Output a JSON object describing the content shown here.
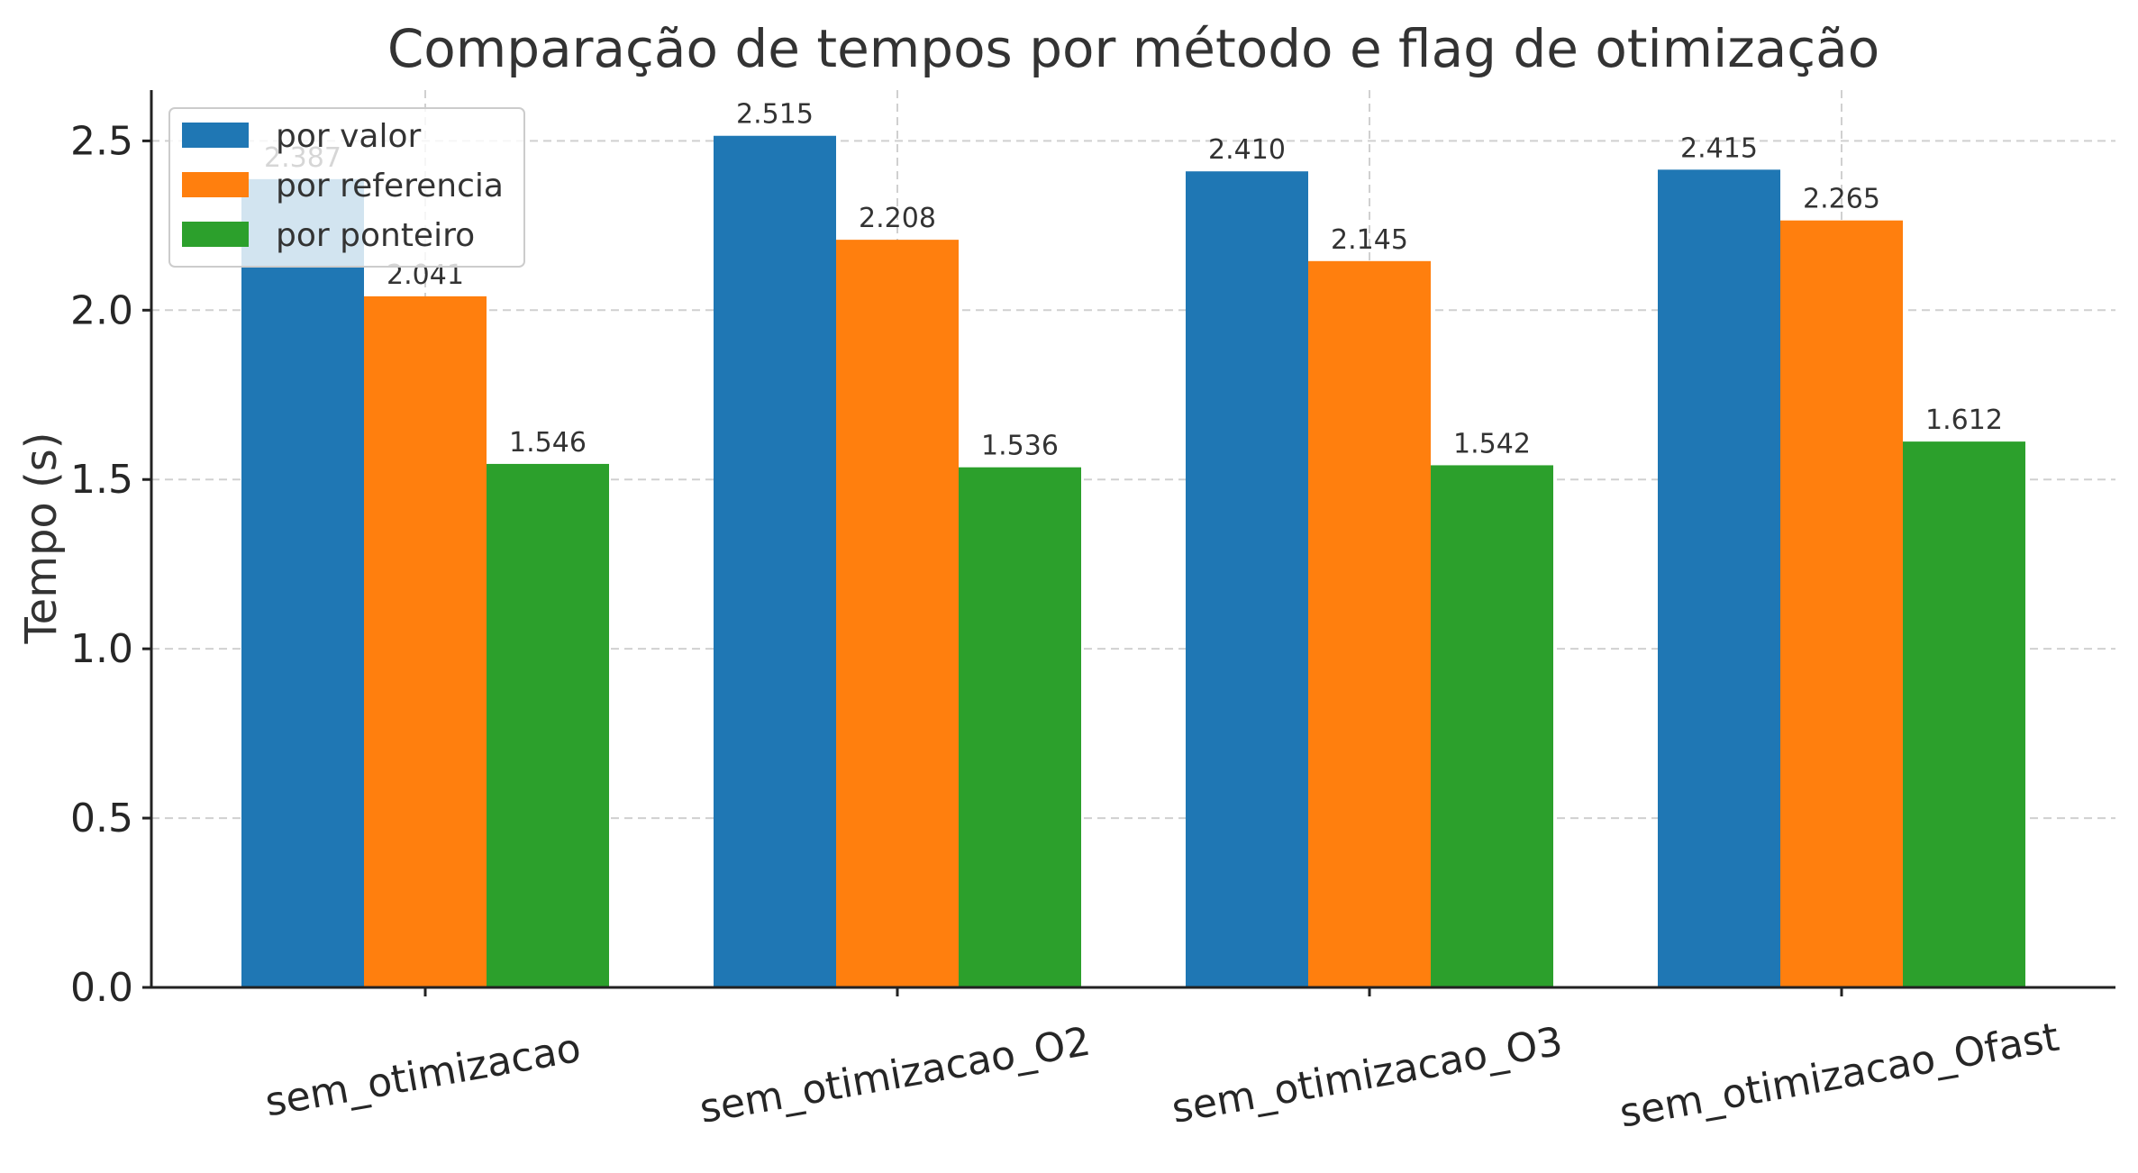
{
  "chart_data": {
    "type": "bar",
    "title": "Comparação de tempos por método e flag de otimização",
    "xlabel": "",
    "ylabel": "Tempo (s)",
    "ylim": [
      0,
      2.65
    ],
    "yticks": [
      "0.0",
      "0.5",
      "1.0",
      "1.5",
      "2.0",
      "2.5"
    ],
    "grid": true,
    "legend_position": "top-left",
    "categories": [
      "sem_otimizacao",
      "sem_otimizacao_O2",
      "sem_otimizacao_O3",
      "sem_otimizacao_Ofast"
    ],
    "series": [
      {
        "name": "por valor",
        "color": "#1f77b4",
        "values": [
          2.387,
          2.515,
          2.41,
          2.415
        ],
        "labels": [
          "2.387",
          "2.515",
          "2.410",
          "2.415"
        ]
      },
      {
        "name": "por referencia",
        "color": "#ff7f0e",
        "values": [
          2.041,
          2.208,
          2.145,
          2.265
        ],
        "labels": [
          "2.041",
          "2.208",
          "2.145",
          "2.265"
        ]
      },
      {
        "name": "por ponteiro",
        "color": "#2ca02c",
        "values": [
          1.546,
          1.536,
          1.542,
          1.612
        ],
        "labels": [
          "1.546",
          "1.536",
          "1.542",
          "1.612"
        ]
      }
    ]
  }
}
